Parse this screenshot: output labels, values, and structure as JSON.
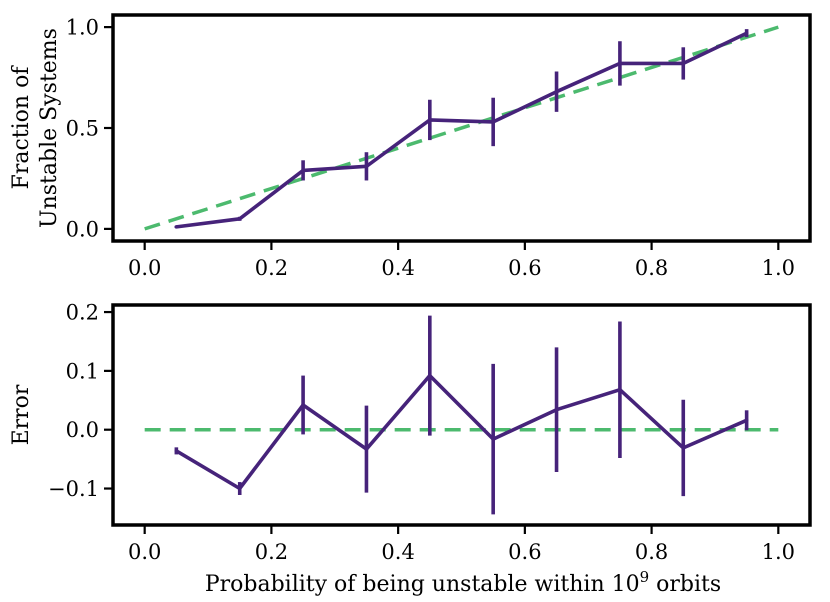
{
  "colors": {
    "series": "#46237a",
    "reference": "#4cba6e"
  },
  "chart_data": [
    {
      "type": "line",
      "panel": "top",
      "ylabel_lines": [
        "Fraction of",
        "Unstable Systems"
      ],
      "xlim": [
        -0.05,
        1.05
      ],
      "ylim": [
        -0.06,
        1.06
      ],
      "xticks": [
        0.0,
        0.2,
        0.4,
        0.6,
        0.8,
        1.0
      ],
      "xtick_labels": [
        "0.0",
        "0.2",
        "0.4",
        "0.6",
        "0.8",
        "1.0"
      ],
      "yticks": [
        0.0,
        0.5,
        1.0
      ],
      "ytick_labels": [
        "0.0",
        "0.5",
        "1.0"
      ],
      "series": [
        {
          "name": "Fraction unstable",
          "x": [
            0.05,
            0.15,
            0.25,
            0.35,
            0.45,
            0.55,
            0.65,
            0.75,
            0.85,
            0.95
          ],
          "y": [
            0.01,
            0.05,
            0.29,
            0.31,
            0.54,
            0.53,
            0.68,
            0.82,
            0.82,
            0.97
          ],
          "yerr": [
            0.005,
            0.01,
            0.05,
            0.07,
            0.1,
            0.12,
            0.1,
            0.11,
            0.08,
            0.02
          ]
        }
      ],
      "reference": {
        "name": "y = x",
        "x": [
          0.0,
          1.0
        ],
        "y": [
          0.0,
          1.0
        ],
        "style": "dashed"
      }
    },
    {
      "type": "line",
      "panel": "bottom",
      "xlabel_prefix": "Probability of being unstable within 10",
      "xlabel_sup": "9",
      "xlabel_suffix": " orbits",
      "ylabel": "Error",
      "xlim": [
        -0.05,
        1.05
      ],
      "ylim": [
        -0.162,
        0.212
      ],
      "xticks": [
        0.0,
        0.2,
        0.4,
        0.6,
        0.8,
        1.0
      ],
      "xtick_labels": [
        "0.0",
        "0.2",
        "0.4",
        "0.6",
        "0.8",
        "1.0"
      ],
      "yticks": [
        -0.1,
        0.0,
        0.1,
        0.2
      ],
      "ytick_labels": [
        "−0.1",
        "0.0",
        "0.1",
        "0.2"
      ],
      "series": [
        {
          "name": "Error",
          "x": [
            0.05,
            0.15,
            0.25,
            0.35,
            0.45,
            0.55,
            0.65,
            0.75,
            0.85,
            0.95
          ],
          "y": [
            -0.036,
            -0.1,
            0.042,
            -0.033,
            0.092,
            -0.016,
            0.034,
            0.068,
            -0.031,
            0.016
          ],
          "yerr": [
            0.006,
            0.011,
            0.05,
            0.074,
            0.102,
            0.128,
            0.106,
            0.116,
            0.082,
            0.017
          ]
        }
      ],
      "reference": {
        "name": "zero",
        "x": [
          0.0,
          1.0
        ],
        "y": [
          0.0,
          0.0
        ],
        "style": "dashed"
      }
    }
  ]
}
